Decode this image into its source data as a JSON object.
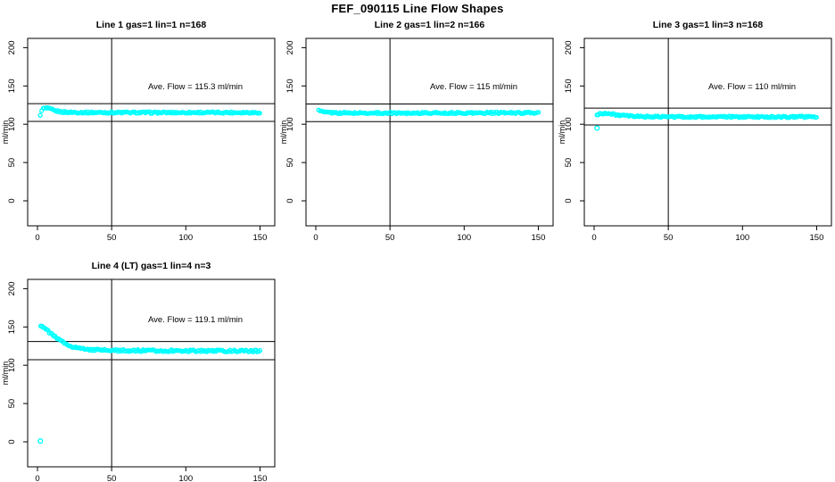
{
  "page_title": "FEF_090115  Line Flow Shapes",
  "chart_data": {
    "type": "scatter",
    "title": "FEF_090115  Line Flow Shapes",
    "ylabel": "ml/min",
    "x_ticks": [
      0,
      50,
      100,
      150
    ],
    "y_ticks": [
      0,
      50,
      100,
      150,
      200
    ],
    "x_axis_range": [
      0,
      160
    ],
    "y_axis_range": [
      0,
      200
    ],
    "grid": false,
    "marker": "open-circle",
    "marker_color": "#00FFFF",
    "vline_x": 50,
    "ref_lines": {
      "type": "average_plus_minus_percent",
      "percent": 10
    },
    "plots": [
      {
        "title": "Line 1 gas=1 lin=1 n=168",
        "annotation": "Ave. Flow =  115.3  ml/min",
        "ave_flow": 115.3,
        "n": 168,
        "rendered_points": 168,
        "jitter": 1.1,
        "seed": 1,
        "series": [
          [
            2,
            111
          ],
          [
            3,
            119.5
          ],
          [
            4,
            120.5
          ],
          [
            5,
            121
          ],
          [
            6,
            121
          ],
          [
            8,
            120.2
          ],
          [
            10,
            118.8
          ],
          [
            12,
            117.6
          ],
          [
            15,
            116.4
          ],
          [
            20,
            115.7
          ],
          [
            30,
            115.4
          ],
          [
            50,
            115.3
          ],
          [
            80,
            115.2
          ],
          [
            110,
            115.3
          ],
          [
            150,
            115.3
          ]
        ],
        "outliers": []
      },
      {
        "title": "Line 2 gas=1 lin=2 n=166",
        "annotation": "Ave. Flow =  115  ml/min",
        "ave_flow": 115,
        "n": 166,
        "rendered_points": 166,
        "jitter": 1.1,
        "seed": 2,
        "series": [
          [
            2,
            119.5
          ],
          [
            3,
            117
          ],
          [
            5,
            116
          ],
          [
            8,
            115.4
          ],
          [
            12,
            115
          ],
          [
            20,
            114.7
          ],
          [
            30,
            114.6
          ],
          [
            50,
            114.7
          ],
          [
            80,
            114.7
          ],
          [
            110,
            114.8
          ],
          [
            150,
            115
          ]
        ],
        "outliers": []
      },
      {
        "title": "Line 3 gas=1 lin=3 n=168",
        "annotation": "Ave. Flow =  110  ml/min",
        "ave_flow": 110,
        "n": 168,
        "rendered_points": 168,
        "jitter": 1.1,
        "seed": 3,
        "series": [
          [
            2,
            112
          ],
          [
            4,
            113.8
          ],
          [
            6,
            114.3
          ],
          [
            8,
            114.2
          ],
          [
            10,
            113.8
          ],
          [
            12,
            113.2
          ],
          [
            15,
            112.3
          ],
          [
            20,
            111.2
          ],
          [
            25,
            110.5
          ],
          [
            30,
            110.1
          ],
          [
            40,
            109.8
          ],
          [
            60,
            109.7
          ],
          [
            100,
            109.6
          ],
          [
            150,
            109.7
          ]
        ],
        "outliers": [
          [
            2,
            95
          ]
        ]
      },
      {
        "title": "Line 4 (LT) gas=1 lin=4 n=3",
        "annotation": "Ave. Flow =  119.1  ml/min",
        "ave_flow": 119.1,
        "n": 3,
        "rendered_points": 170,
        "jitter": 1.3,
        "seed": 4,
        "series": [
          [
            2,
            152
          ],
          [
            3,
            151.2
          ],
          [
            4,
            150
          ],
          [
            5,
            148.5
          ],
          [
            6,
            146.8
          ],
          [
            8,
            143.2
          ],
          [
            10,
            139.8
          ],
          [
            12,
            136.7
          ],
          [
            14,
            133.9
          ],
          [
            16,
            131.4
          ],
          [
            18,
            129.2
          ],
          [
            20,
            127.3
          ],
          [
            23,
            124.9
          ],
          [
            26,
            123.2
          ],
          [
            30,
            121.6
          ],
          [
            35,
            120.5
          ],
          [
            40,
            119.9
          ],
          [
            50,
            119.4
          ],
          [
            60,
            119.2
          ],
          [
            70,
            119.1
          ],
          [
            85,
            119
          ],
          [
            100,
            118.9
          ],
          [
            120,
            118.8
          ],
          [
            150,
            118.6
          ]
        ],
        "outliers": [
          [
            2,
            1
          ]
        ]
      }
    ]
  }
}
